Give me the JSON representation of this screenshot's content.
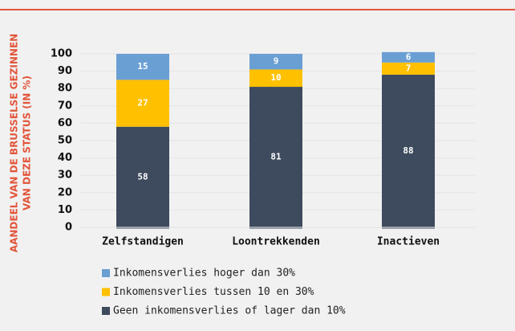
{
  "chart_data": {
    "type": "stacked_bar",
    "y_label": [
      "AANDEEL VAN DE BRUSSELSE GEZINNEN",
      "VAN DEZE STATUS (IN %)"
    ],
    "categories": [
      "Zelfstandigen",
      "Loontrekkenden",
      "Inactieven"
    ],
    "series": [
      {
        "name": "Geen inkomensverlies of lager dan 10%",
        "color": "#3e4b5e",
        "values": [
          58,
          81,
          88
        ]
      },
      {
        "name": "Inkomensverlies tussen 10 en 30%",
        "color": "#ffc000",
        "values": [
          27,
          10,
          7
        ]
      },
      {
        "name": "Inkomensverlies hoger dan 30%",
        "color": "#6a9fd3",
        "values": [
          15,
          9,
          6
        ]
      }
    ],
    "ylim": [
      0,
      100
    ],
    "yticks": [
      0,
      10,
      20,
      30,
      40,
      50,
      60,
      70,
      80,
      90,
      100
    ],
    "grid": true
  }
}
